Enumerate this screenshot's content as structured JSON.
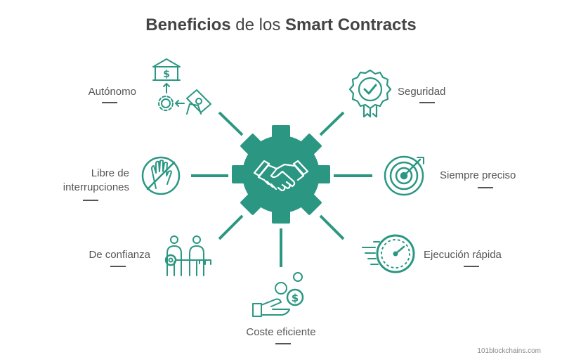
{
  "title": {
    "bold1": "Beneficios",
    "light": " de los ",
    "bold2": "Smart Contracts"
  },
  "colors": {
    "accent": "#2b9783",
    "text": "#555555",
    "title": "#444444"
  },
  "center": {
    "icon": "handshake-icon"
  },
  "benefits": [
    {
      "id": "autonomo",
      "label": "Autónomo",
      "icon": "bank-gear-money-icon"
    },
    {
      "id": "libre",
      "label_line1": "Libre de",
      "label_line2": "interrupciones",
      "icon": "no-hand-icon"
    },
    {
      "id": "confianza",
      "label": "De confianza",
      "icon": "people-key-icon"
    },
    {
      "id": "coste",
      "label": "Coste eficiente",
      "icon": "hand-coins-icon"
    },
    {
      "id": "ejecucion",
      "label": "Ejecución rápida",
      "icon": "fast-clock-icon"
    },
    {
      "id": "preciso",
      "label": "Siempre preciso",
      "icon": "target-icon"
    },
    {
      "id": "seguridad",
      "label": "Seguridad",
      "icon": "check-badge-icon"
    }
  ],
  "credit": "101blockchains.com"
}
